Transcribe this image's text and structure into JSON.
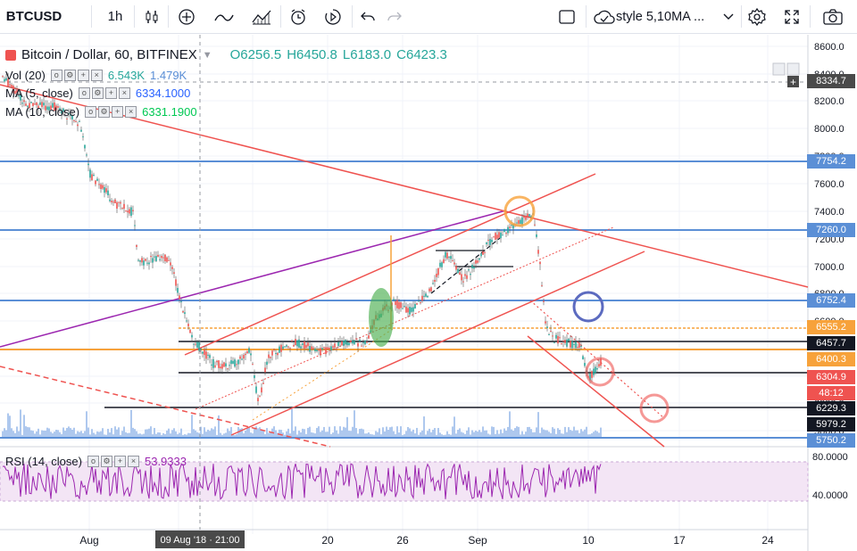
{
  "toolbar": {
    "symbol": "BTCUSD",
    "interval": "1h",
    "template_label": "style 5,10MA ...",
    "tools": [
      "bar-style-icon",
      "indicators-icon",
      "compare-icon",
      "templates-icon",
      "alert-icon",
      "replay-icon",
      "undo-icon",
      "redo-icon"
    ]
  },
  "legend": {
    "main_title": "Bitcoin / Dollar, 60, BITFINEX",
    "open": "O6256.5",
    "high": "H6450.8",
    "low": "L6183.0",
    "close": "C6423.3",
    "vol_label": "Vol (20)",
    "vol_value1": "6.543K",
    "vol_value2": "1.479K",
    "ma5_label": "MA (5, close)",
    "ma5_value": "6334.1000",
    "ma10_label": "MA (10, close)",
    "ma10_value": "6331.1900",
    "rsi_label": "RSI (14, close)",
    "rsi_value": "53.9333"
  },
  "price_axis": {
    "ticks": [
      "8600.0",
      "8400.0",
      "8200.0",
      "8000.0",
      "7800.0",
      "7600.0",
      "7400.0",
      "7200.0",
      "7000.0",
      "6800.0",
      "6600.0",
      "6200.0",
      "6000.0",
      "5800.0"
    ],
    "tags": [
      {
        "label": "8334.7",
        "color": "#4a4a4a"
      },
      {
        "label": "7754.2",
        "color": "#5b8fd6"
      },
      {
        "label": "7260.0",
        "color": "#5b8fd6"
      },
      {
        "label": "6752.4",
        "color": "#5b8fd6"
      },
      {
        "label": "6555.2",
        "color": "#f7a23b"
      },
      {
        "label": "6457.7",
        "color": "#131722"
      },
      {
        "label": "6400.3",
        "color": "#f7a23b"
      },
      {
        "label": "6304.9",
        "color": "#ef5350"
      },
      {
        "label": "48:12",
        "color": "#ef5350"
      },
      {
        "label": "6229.3",
        "color": "#131722"
      },
      {
        "label": "5979.2",
        "color": "#131722"
      },
      {
        "label": "5750.2",
        "color": "#5b8fd6"
      }
    ]
  },
  "rsi_axis": {
    "ticks": [
      "80.0000",
      "40.0000"
    ]
  },
  "time_axis": {
    "ticks": [
      "Aug",
      "20",
      "26",
      "Sep",
      "10",
      "17",
      "24"
    ],
    "crosshair_label": "09 Aug '18 · 21:00"
  },
  "colors": {
    "blue_line": "#5b8fd6",
    "red_line": "#ef5350",
    "purple_line": "#9c27b0",
    "orange_line": "#f7a23b",
    "rsi_fill": "#f3e5f5"
  }
}
